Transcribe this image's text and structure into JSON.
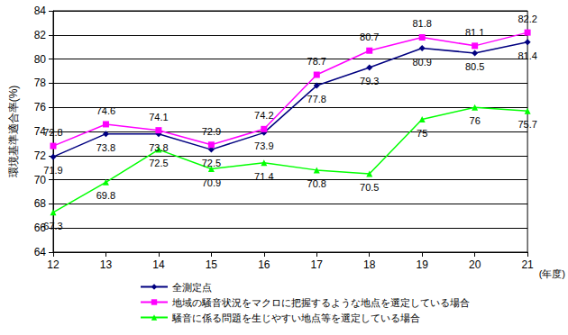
{
  "chart_data": {
    "type": "line",
    "x_label": "(年度)",
    "y_label": "環境基準適合率(%)",
    "categories": [
      "12",
      "13",
      "14",
      "15",
      "16",
      "17",
      "18",
      "19",
      "20",
      "21"
    ],
    "series": [
      {
        "name": "全測定点",
        "color": "#000080",
        "marker": "diamond",
        "line_style": "solid",
        "values": [
          71.9,
          73.8,
          73.8,
          72.5,
          73.9,
          77.8,
          79.3,
          80.9,
          80.5,
          81.4
        ]
      },
      {
        "name": "地域の騒音状況をマクロに把握するような地点を選定している場合",
        "color": "#ff00ff",
        "marker": "square",
        "line_style": "solid",
        "values": [
          72.8,
          74.6,
          74.1,
          72.9,
          74.2,
          78.7,
          80.7,
          81.8,
          81.1,
          82.2
        ]
      },
      {
        "name": "騒音に係る問題を生じやすい地点等を選定している場合",
        "color": "#00ff00",
        "marker": "triangle",
        "line_style": "solid",
        "values": [
          67.3,
          69.8,
          72.5,
          70.9,
          71.4,
          70.8,
          70.5,
          75.0,
          76.0,
          75.7
        ]
      }
    ],
    "ylim": [
      64,
      84
    ],
    "yticks": [
      64,
      66,
      68,
      70,
      72,
      74,
      76,
      78,
      80,
      82,
      84
    ],
    "grid": true,
    "legend": "bottom",
    "data_labels": true
  }
}
